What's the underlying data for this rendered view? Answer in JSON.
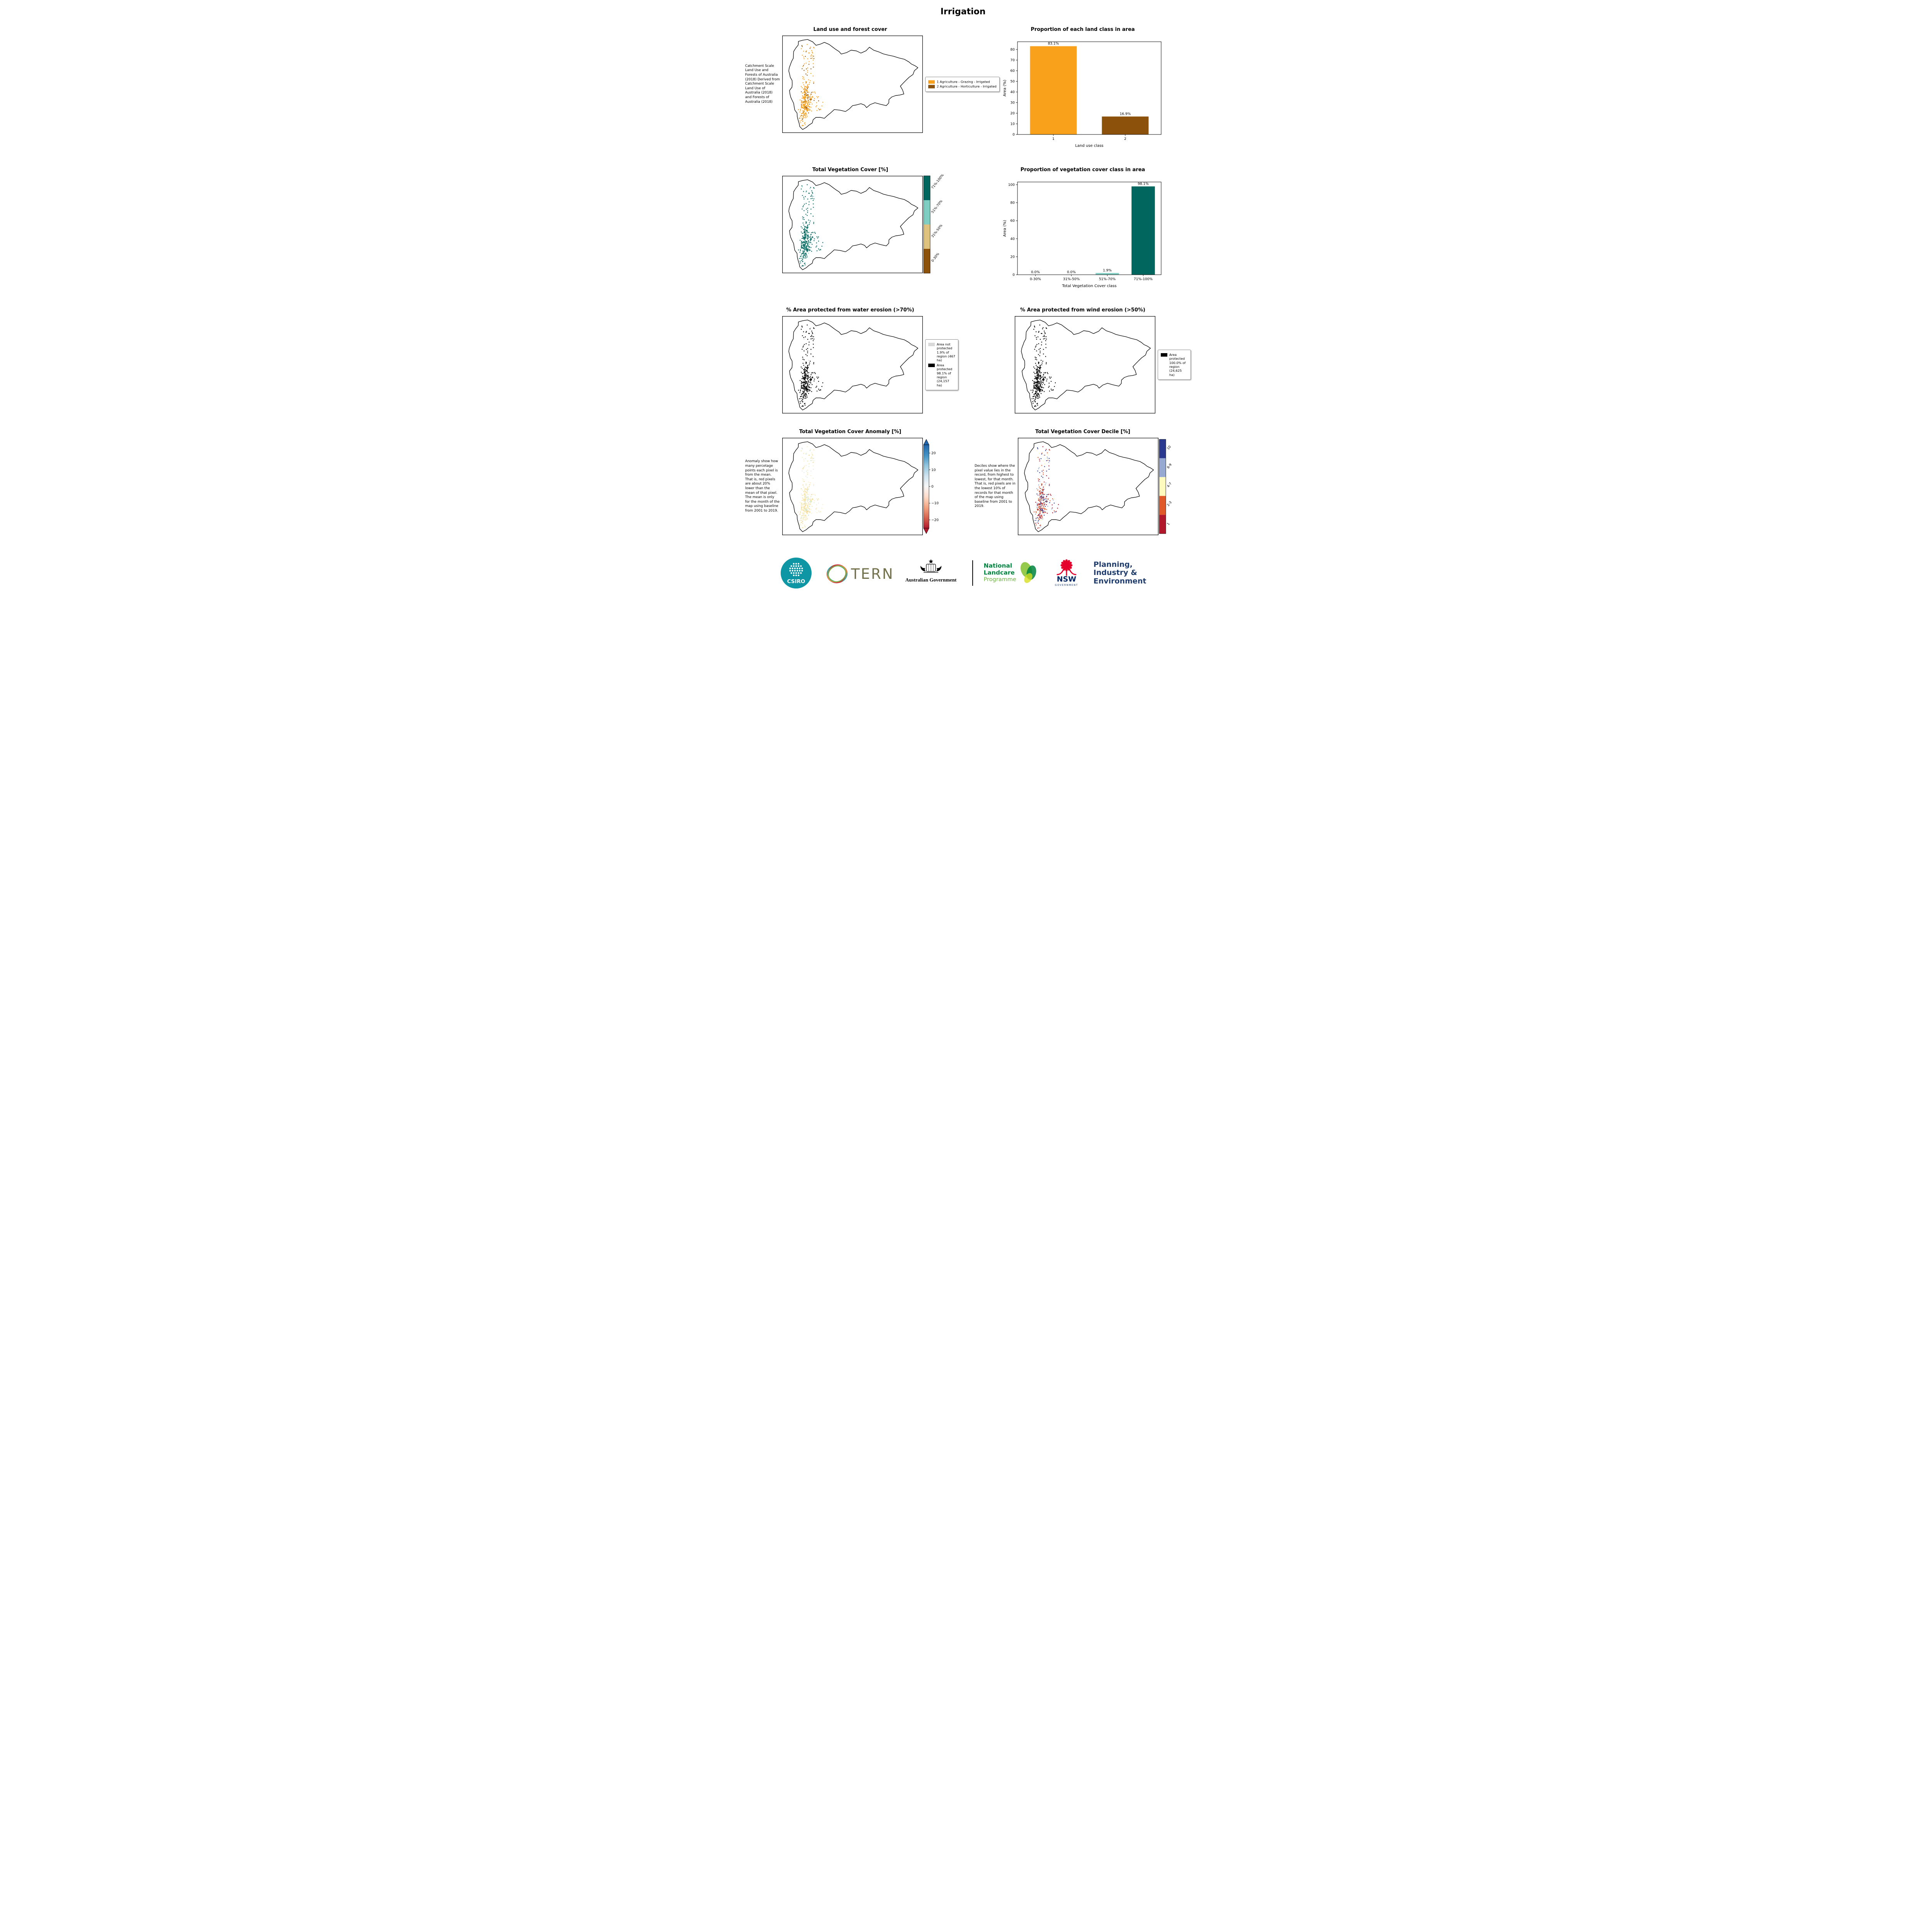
{
  "page_title": "Irrigation",
  "colors": {
    "landuse": {
      "grazing": "#F9A11B",
      "horticulture": "#8C510A"
    },
    "veg": {
      "c0_30": "#8C510A",
      "c31_50": "#DFC27D",
      "c51_70": "#80CDC1",
      "c71_100": "#01665E"
    },
    "erosion": {
      "not_protected": "#D9D9D9",
      "protected": "#000000"
    },
    "anomaly_scale": [
      "#B2182B",
      "#D6604D",
      "#F4A582",
      "#FDDBC7",
      "#F7F7F7",
      "#D1E5F0",
      "#92C5DE",
      "#4393C3",
      "#2166AC"
    ],
    "anomaly_pixels": [
      "#FBEEC6",
      "#F7E3A1",
      "#F3D488",
      "#DDEEE2",
      "#BFE0D2"
    ]
  },
  "panels": {
    "landuse_map": {
      "title": "Land use and forest cover",
      "annotation": "Catchment Scale Land Use and Forests of Australia (2018) Derived from Catchment Scale Land Use of Australia (2018) and Forests of Australia (2018)",
      "legend": [
        {
          "label": "1 Agriculture - Grazing - Irrigated",
          "color": "#F9A11B"
        },
        {
          "label": "2 Agriculture - Horticulture - Irrigated",
          "color": "#8C510A"
        }
      ]
    },
    "veg_map": {
      "title": "Total Vegetation Cover [%]",
      "colorbar": [
        {
          "label": "0-30%",
          "color": "#8C510A"
        },
        {
          "label": "31%-50%",
          "color": "#DFC27D"
        },
        {
          "label": "51%-70%",
          "color": "#80CDC1"
        },
        {
          "label": "71%-100%",
          "color": "#01665E"
        }
      ]
    },
    "water_map": {
      "title": "% Area protected from water erosion (>70%)",
      "legend": [
        {
          "label": "Area not protected 1.9% of region (467 ha)",
          "color": "#D9D9D9"
        },
        {
          "label": "Area protected 98.1% of region (24,157 ha)",
          "color": "#000000"
        }
      ]
    },
    "wind_map": {
      "title": "% Area protected from wind erosion (>50%)",
      "legend": [
        {
          "label": "Area protected 100.0% of region (24,625 ha)",
          "color": "#000000"
        }
      ]
    },
    "anomaly_map": {
      "title": "Total Vegetation Cover Anomaly [%]",
      "annotation": "Anomaly show how many percetage points each pixel is from the mean. That is, red pixels are about 20% lower than the mean of that pixel. The mean is only for the month of the map using baseline from 2001 to 2019.",
      "colorbar_range": [
        -25,
        25
      ],
      "colorbar_ticks": [
        {
          "label": "20",
          "value": 20
        },
        {
          "label": "10",
          "value": 10
        },
        {
          "label": "0",
          "value": 0
        },
        {
          "label": "−10",
          "value": -10
        },
        {
          "label": "−20",
          "value": -20
        }
      ]
    },
    "decile_map": {
      "title": "Total Vegetation Cover Decile [%]",
      "annotation": "Deciles show where the pixel value lies in the record, from highest to lowest, for that month. That is, red pixels are in the lowest 10% of records for that month of the map using baseline from 2001 to 2019.",
      "colorbar": [
        {
          "label": "1",
          "color": "#B2182B"
        },
        {
          "label": "2-3",
          "color": "#E1592A"
        },
        {
          "label": "4-7",
          "color": "#FFFBBF"
        },
        {
          "label": "8-9",
          "color": "#97A8D3"
        },
        {
          "label": "10",
          "color": "#2B3A8F"
        }
      ]
    }
  },
  "chart_data": [
    {
      "type": "bar",
      "title": "Proportion of each land class in area",
      "categories": [
        "1",
        "2"
      ],
      "values": [
        83.1,
        16.9
      ],
      "value_labels": [
        "83.1%",
        "16.9%"
      ],
      "bar_colors": [
        "#F9A11B",
        "#8C510A"
      ],
      "xlabel": "Land use class",
      "ylabel": "Area (%)",
      "ylim": [
        0,
        87.3
      ],
      "yticks": [
        0,
        10,
        20,
        30,
        40,
        50,
        60,
        70,
        80
      ],
      "grid": false,
      "legend_position": "none"
    },
    {
      "type": "bar",
      "title": "Proportion of vegetation cover class in area",
      "categories": [
        "0-30%",
        "31%-50%",
        "51%-70%",
        "71%-100%"
      ],
      "values": [
        0.0,
        0.0,
        1.9,
        98.1
      ],
      "value_labels": [
        "0.0%",
        "0.0%",
        "1.9%",
        "98.1%"
      ],
      "bar_colors": [
        "#8C510A",
        "#DFC27D",
        "#80CDC1",
        "#01665E"
      ],
      "xlabel": "Total Vegetation Cover class",
      "ylabel": "Area (%)",
      "ylim": [
        0,
        103
      ],
      "yticks": [
        0,
        20,
        40,
        60,
        80,
        100
      ],
      "grid": false,
      "legend_position": "none"
    }
  ],
  "footer": {
    "csiro": "CSIRO",
    "tern": "TERN",
    "aus_gov": "Australian Government",
    "landcare": [
      "National",
      "Landcare",
      "Programme"
    ],
    "nsw": {
      "name": "NSW",
      "sub": "GOVERNMENT"
    },
    "dpie": [
      "Planning,",
      "Industry &",
      "Environment"
    ]
  }
}
